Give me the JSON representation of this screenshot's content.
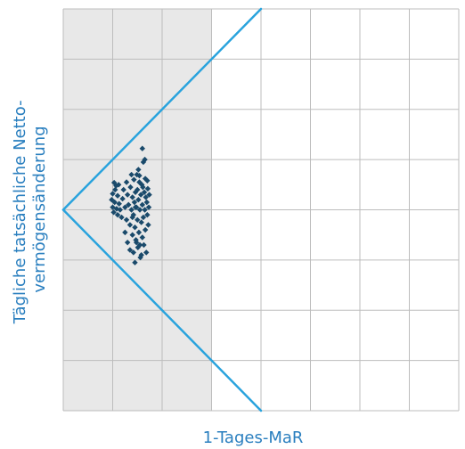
{
  "colors": {
    "shade": "#e8e8e8",
    "grid": "#bdbdbd",
    "boundary": "#29a3dd",
    "point": "#1a4a6b",
    "axis_title": "#2a7fbf"
  },
  "chart_data": {
    "type": "scatter",
    "title": "",
    "xlabel": "1-Tages-MaR",
    "ylabel_lines": [
      "Tägliche tatsächliche Netto-",
      "vermögensänderung"
    ],
    "xlim": [
      0,
      8
    ],
    "ylim": [
      -4,
      4
    ],
    "grid": true,
    "x_ticks": [
      0,
      1,
      2,
      3,
      4,
      5,
      6,
      7,
      8
    ],
    "y_ticks": [
      -4,
      -3,
      -2,
      -1,
      0,
      1,
      2,
      3,
      4
    ],
    "shaded_region": {
      "x_from": 0,
      "x_to": 3
    },
    "boundary_lines": [
      {
        "name": "upper",
        "x": [
          0,
          4
        ],
        "y": [
          0,
          4
        ]
      },
      {
        "name": "lower",
        "x": [
          0,
          4
        ],
        "y": [
          0,
          -4
        ]
      }
    ],
    "series": [
      {
        "marker": "diamond",
        "points": [
          [
            1.03,
            0.54
          ],
          [
            1.07,
            0.48
          ],
          [
            1.12,
            0.5
          ],
          [
            1.05,
            0.4
          ],
          [
            1.0,
            0.32
          ],
          [
            1.1,
            0.28
          ],
          [
            0.98,
            0.2
          ],
          [
            1.04,
            0.15
          ],
          [
            1.13,
            0.12
          ],
          [
            1.0,
            0.05
          ],
          [
            1.08,
            0.02
          ],
          [
            1.15,
            0.0
          ],
          [
            1.02,
            -0.05
          ],
          [
            1.1,
            -0.1
          ],
          [
            1.2,
            0.22
          ],
          [
            1.22,
            0.4
          ],
          [
            1.25,
            0.05
          ],
          [
            1.28,
            -0.2
          ],
          [
            1.3,
            0.3
          ],
          [
            1.32,
            0.1
          ],
          [
            1.35,
            -0.3
          ],
          [
            1.36,
            0.45
          ],
          [
            1.38,
            0.0
          ],
          [
            1.4,
            -0.5
          ],
          [
            1.4,
            0.25
          ],
          [
            1.42,
            -0.1
          ],
          [
            1.43,
            0.6
          ],
          [
            1.44,
            0.15
          ],
          [
            1.45,
            -0.35
          ],
          [
            1.46,
            0.35
          ],
          [
            1.47,
            -0.6
          ],
          [
            1.48,
            0.05
          ],
          [
            1.49,
            0.7
          ],
          [
            1.5,
            -0.2
          ],
          [
            1.5,
            0.4
          ],
          [
            1.51,
            -0.75
          ],
          [
            1.52,
            0.2
          ],
          [
            1.53,
            -0.45
          ],
          [
            1.54,
            0.55
          ],
          [
            1.55,
            0.0
          ],
          [
            1.56,
            -0.95
          ],
          [
            1.57,
            0.3
          ],
          [
            1.58,
            -0.25
          ],
          [
            1.59,
            0.5
          ],
          [
            1.6,
            -0.55
          ],
          [
            1.6,
            0.1
          ],
          [
            1.61,
            0.45
          ],
          [
            1.62,
            -0.15
          ],
          [
            1.63,
            -0.7
          ],
          [
            1.64,
            0.35
          ],
          [
            1.65,
            0.0
          ],
          [
            1.66,
            -0.4
          ],
          [
            1.67,
            0.25
          ],
          [
            1.68,
            -0.85
          ],
          [
            1.69,
            0.15
          ],
          [
            1.7,
            -0.1
          ],
          [
            1.71,
            0.42
          ],
          [
            1.72,
            -0.3
          ],
          [
            1.73,
            0.05
          ],
          [
            1.74,
            0.3
          ],
          [
            1.3,
            -0.65
          ],
          [
            1.35,
            -0.8
          ],
          [
            1.45,
            -1.05
          ],
          [
            1.48,
            -0.65
          ],
          [
            1.55,
            -0.7
          ],
          [
            1.58,
            -0.9
          ],
          [
            1.62,
            0.95
          ],
          [
            1.65,
            1.0
          ],
          [
            1.42,
            -0.85
          ],
          [
            1.52,
            0.8
          ],
          [
            1.38,
            0.7
          ],
          [
            1.28,
            0.55
          ],
          [
            1.18,
            -0.15
          ],
          [
            1.25,
            -0.45
          ],
          [
            1.6,
            1.22
          ],
          [
            1.54,
            0.68
          ],
          [
            1.46,
            0.05
          ],
          [
            1.4,
            -0.15
          ],
          [
            1.66,
            0.62
          ],
          [
            1.7,
            0.58
          ]
        ]
      }
    ]
  }
}
